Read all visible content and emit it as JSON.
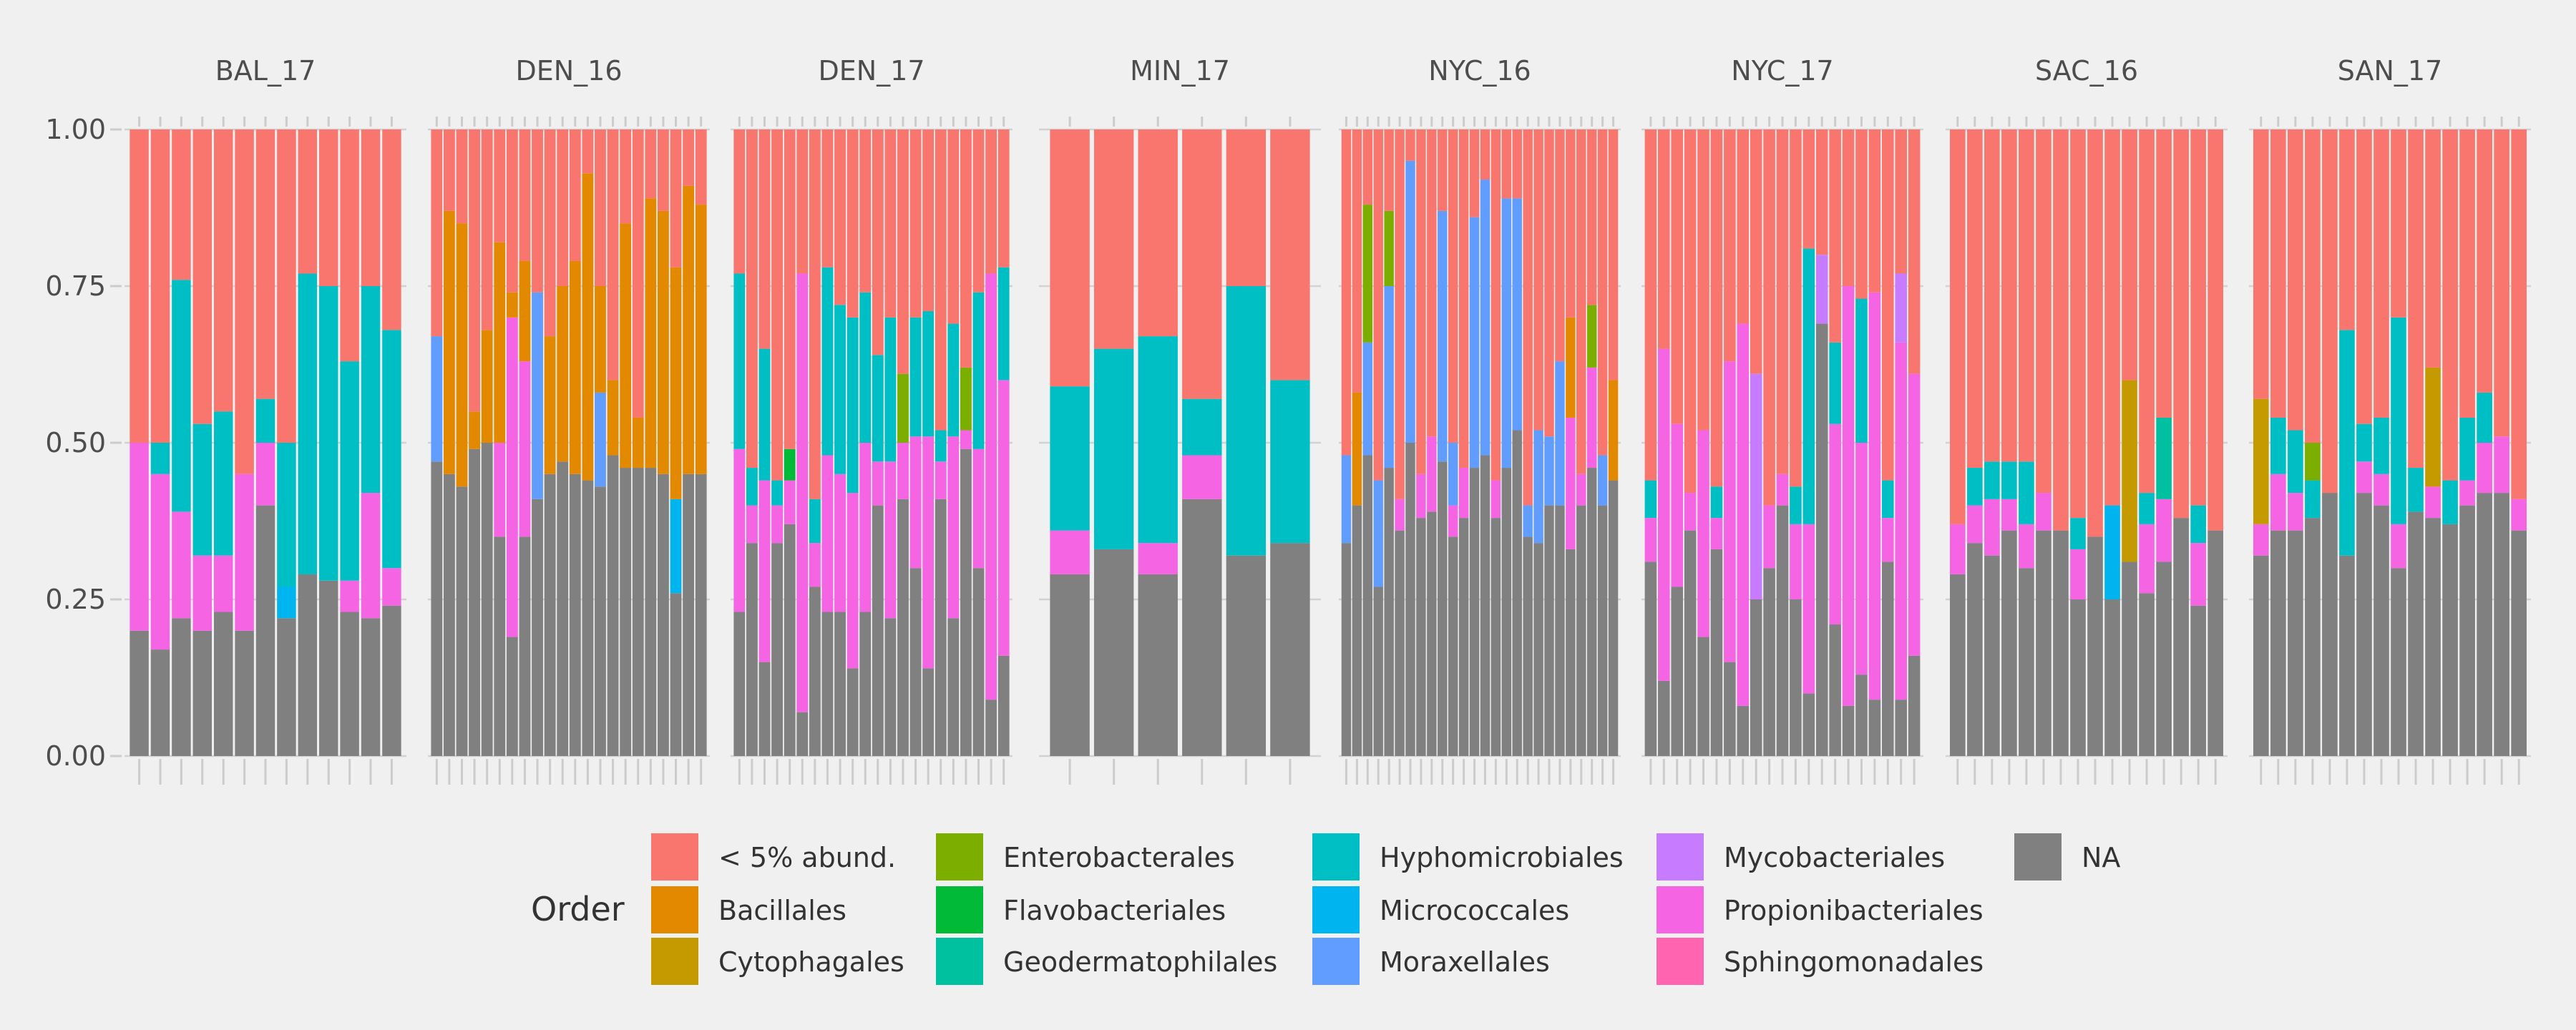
{
  "chart_data": {
    "type": "bar",
    "stacked": true,
    "facet": "panel",
    "ylim": [
      0,
      1
    ],
    "yticks": [
      "0.00",
      "0.25",
      "0.50",
      "0.75",
      "1.00"
    ],
    "grid": true,
    "legend_position": "bottom",
    "legend": {
      "title": "Order",
      "entries": [
        {
          "key": "other",
          "label": "< 5% abund.",
          "color": "#F8766D"
        },
        {
          "key": "bac",
          "label": "Bacillales",
          "color": "#E38900"
        },
        {
          "key": "cyt",
          "label": "Cytophagales",
          "color": "#C49A00"
        },
        {
          "key": "ent",
          "label": "Enterobacterales",
          "color": "#7CAE00"
        },
        {
          "key": "fla",
          "label": "Flavobacteriales",
          "color": "#00BA38"
        },
        {
          "key": "geo",
          "label": "Geodermatophilales",
          "color": "#00C19F"
        },
        {
          "key": "hyp",
          "label": "Hyphomicrobiales",
          "color": "#00BFC4"
        },
        {
          "key": "mic",
          "label": "Micrococcales",
          "color": "#00B4EF"
        },
        {
          "key": "mor",
          "label": "Moraxellales",
          "color": "#619CFF"
        },
        {
          "key": "myc",
          "label": "Mycobacteriales",
          "color": "#C77CFF"
        },
        {
          "key": "pro",
          "label": "Propionibacteriales",
          "color": "#F564E3"
        },
        {
          "key": "sph",
          "label": "Sphingomonadales",
          "color": "#FF64B0"
        },
        {
          "key": "na",
          "label": "NA",
          "color": "#808080"
        }
      ]
    },
    "panels": [
      {
        "name": "BAL_17",
        "samples": [
          {
            "na": 0.2,
            "pro": 0.3
          },
          {
            "na": 0.17,
            "pro": 0.28,
            "hyp": 0.05
          },
          {
            "na": 0.22,
            "pro": 0.17,
            "hyp": 0.37
          },
          {
            "na": 0.2,
            "pro": 0.12,
            "hyp": 0.21
          },
          {
            "na": 0.23,
            "pro": 0.09,
            "hyp": 0.23
          },
          {
            "na": 0.2,
            "pro": 0.25
          },
          {
            "na": 0.4,
            "pro": 0.1,
            "hyp": 0.07
          },
          {
            "na": 0.22,
            "mic": 0.05,
            "hyp": 0.23
          },
          {
            "na": 0.29,
            "hyp": 0.48
          },
          {
            "na": 0.28,
            "hyp": 0.47
          },
          {
            "na": 0.23,
            "pro": 0.05,
            "hyp": 0.35
          },
          {
            "na": 0.22,
            "pro": 0.2,
            "hyp": 0.33
          },
          {
            "na": 0.24,
            "pro": 0.06,
            "hyp": 0.38
          }
        ]
      },
      {
        "name": "DEN_16",
        "samples": [
          {
            "na": 0.47,
            "mor": 0.2
          },
          {
            "na": 0.45,
            "bac": 0.42
          },
          {
            "na": 0.43,
            "bac": 0.42
          },
          {
            "na": 0.49,
            "bac": 0.06
          },
          {
            "na": 0.5,
            "bac": 0.18
          },
          {
            "na": 0.35,
            "pro": 0.15,
            "bac": 0.32
          },
          {
            "na": 0.19,
            "pro": 0.51,
            "bac": 0.04
          },
          {
            "na": 0.35,
            "pro": 0.28,
            "bac": 0.16
          },
          {
            "na": 0.41,
            "mor": 0.33
          },
          {
            "na": 0.45,
            "bac": 0.22
          },
          {
            "na": 0.47,
            "bac": 0.28
          },
          {
            "na": 0.45,
            "bac": 0.34
          },
          {
            "na": 0.44,
            "bac": 0.49
          },
          {
            "na": 0.43,
            "mor": 0.15,
            "bac": 0.17
          },
          {
            "na": 0.48,
            "bac": 0.12
          },
          {
            "na": 0.46,
            "bac": 0.39
          },
          {
            "na": 0.46,
            "bac": 0.08
          },
          {
            "na": 0.46,
            "bac": 0.43
          },
          {
            "na": 0.45,
            "bac": 0.42
          },
          {
            "na": 0.26,
            "mic": 0.15,
            "bac": 0.37
          },
          {
            "na": 0.45,
            "bac": 0.46
          },
          {
            "na": 0.45,
            "bac": 0.43
          }
        ]
      },
      {
        "name": "DEN_17",
        "samples": [
          {
            "na": 0.23,
            "pro": 0.26,
            "hyp": 0.28
          },
          {
            "na": 0.34,
            "pro": 0.06,
            "hyp": 0.06
          },
          {
            "na": 0.15,
            "pro": 0.29,
            "hyp": 0.21
          },
          {
            "na": 0.34,
            "pro": 0.06,
            "hyp": 0.04
          },
          {
            "na": 0.37,
            "pro": 0.07,
            "fla": 0.05
          },
          {
            "na": 0.07,
            "pro": 0.7
          },
          {
            "na": 0.27,
            "pro": 0.07,
            "hyp": 0.07
          },
          {
            "na": 0.23,
            "pro": 0.25,
            "hyp": 0.3
          },
          {
            "na": 0.23,
            "pro": 0.22,
            "hyp": 0.27
          },
          {
            "na": 0.14,
            "pro": 0.28,
            "hyp": 0.28
          },
          {
            "na": 0.23,
            "pro": 0.27,
            "hyp": 0.24
          },
          {
            "na": 0.4,
            "pro": 0.07,
            "hyp": 0.17
          },
          {
            "na": 0.22,
            "pro": 0.25,
            "hyp": 0.23
          },
          {
            "na": 0.41,
            "pro": 0.09,
            "ent": 0.11
          },
          {
            "na": 0.3,
            "pro": 0.21,
            "hyp": 0.19
          },
          {
            "na": 0.14,
            "pro": 0.37,
            "hyp": 0.2
          },
          {
            "na": 0.41,
            "pro": 0.06,
            "hyp": 0.05
          },
          {
            "na": 0.22,
            "pro": 0.29,
            "hyp": 0.18
          },
          {
            "na": 0.49,
            "pro": 0.03,
            "ent": 0.1
          },
          {
            "na": 0.3,
            "pro": 0.19,
            "hyp": 0.25
          },
          {
            "na": 0.09,
            "pro": 0.68
          },
          {
            "na": 0.16,
            "pro": 0.44,
            "hyp": 0.18
          }
        ]
      },
      {
        "name": "MIN_17",
        "samples": [
          {
            "na": 0.29,
            "pro": 0.07,
            "hyp": 0.23
          },
          {
            "na": 0.33,
            "hyp": 0.32
          },
          {
            "na": 0.29,
            "pro": 0.05,
            "hyp": 0.33
          },
          {
            "na": 0.41,
            "pro": 0.07,
            "hyp": 0.09
          },
          {
            "na": 0.32,
            "hyp": 0.43
          },
          {
            "na": 0.34,
            "hyp": 0.26
          }
        ]
      },
      {
        "name": "NYC_16",
        "samples": [
          {
            "na": 0.34,
            "mor": 0.14
          },
          {
            "na": 0.4,
            "bac": 0.18
          },
          {
            "na": 0.48,
            "mor": 0.18,
            "ent": 0.22
          },
          {
            "na": 0.27,
            "mor": 0.17
          },
          {
            "na": 0.46,
            "mor": 0.29,
            "ent": 0.12
          },
          {
            "na": 0.36,
            "pro": 0.05
          },
          {
            "na": 0.5,
            "mor": 0.45
          },
          {
            "na": 0.38,
            "pro": 0.07
          },
          {
            "na": 0.39,
            "pro": 0.12
          },
          {
            "na": 0.47,
            "mor": 0.4
          },
          {
            "na": 0.35,
            "pro": 0.05,
            "mor": 0.1
          },
          {
            "na": 0.38,
            "pro": 0.08
          },
          {
            "na": 0.46,
            "mor": 0.4
          },
          {
            "na": 0.48,
            "mor": 0.44
          },
          {
            "na": 0.38,
            "pro": 0.06
          },
          {
            "na": 0.46,
            "mor": 0.43
          },
          {
            "na": 0.52,
            "mor": 0.37
          },
          {
            "na": 0.35,
            "mor": 0.05
          },
          {
            "na": 0.34,
            "mor": 0.18
          },
          {
            "na": 0.4,
            "mor": 0.11
          },
          {
            "na": 0.4,
            "mor": 0.23
          },
          {
            "na": 0.33,
            "pro": 0.21,
            "bac": 0.16
          },
          {
            "na": 0.4,
            "pro": 0.05
          },
          {
            "na": 0.46,
            "pro": 0.16,
            "ent": 0.1
          },
          {
            "na": 0.4,
            "mor": 0.08
          },
          {
            "na": 0.44,
            "bac": 0.16
          }
        ]
      },
      {
        "name": "NYC_17",
        "samples": [
          {
            "na": 0.31,
            "pro": 0.07,
            "hyp": 0.06
          },
          {
            "na": 0.12,
            "pro": 0.53
          },
          {
            "na": 0.27,
            "pro": 0.26
          },
          {
            "na": 0.36,
            "pro": 0.06
          },
          {
            "na": 0.19,
            "pro": 0.33
          },
          {
            "na": 0.33,
            "pro": 0.05,
            "hyp": 0.05
          },
          {
            "na": 0.15,
            "pro": 0.48
          },
          {
            "na": 0.08,
            "pro": 0.61
          },
          {
            "na": 0.25,
            "myc": 0.36
          },
          {
            "na": 0.3,
            "pro": 0.1
          },
          {
            "na": 0.4,
            "pro": 0.05
          },
          {
            "na": 0.25,
            "pro": 0.12,
            "hyp": 0.06
          },
          {
            "na": 0.1,
            "pro": 0.27,
            "hyp": 0.44
          },
          {
            "na": 0.69,
            "myc": 0.11
          },
          {
            "na": 0.21,
            "pro": 0.32,
            "hyp": 0.13
          },
          {
            "na": 0.08,
            "pro": 0.67
          },
          {
            "na": 0.13,
            "pro": 0.37,
            "hyp": 0.23
          },
          {
            "na": 0.09,
            "pro": 0.65
          },
          {
            "na": 0.31,
            "pro": 0.07,
            "hyp": 0.06
          },
          {
            "na": 0.09,
            "pro": 0.57,
            "myc": 0.11
          },
          {
            "na": 0.16,
            "pro": 0.45
          }
        ]
      },
      {
        "name": "SAC_16",
        "samples": [
          {
            "na": 0.29,
            "pro": 0.08
          },
          {
            "na": 0.34,
            "pro": 0.06,
            "hyp": 0.06
          },
          {
            "na": 0.32,
            "pro": 0.09,
            "hyp": 0.06
          },
          {
            "na": 0.36,
            "pro": 0.05,
            "hyp": 0.06
          },
          {
            "na": 0.3,
            "pro": 0.07,
            "hyp": 0.1
          },
          {
            "na": 0.36,
            "pro": 0.06
          },
          {
            "na": 0.36
          },
          {
            "na": 0.25,
            "pro": 0.08,
            "hyp": 0.05
          },
          {
            "na": 0.35
          },
          {
            "na": 0.25,
            "mic": 0.15
          },
          {
            "na": 0.31,
            "cyt": 0.29
          },
          {
            "na": 0.26,
            "pro": 0.11,
            "hyp": 0.05
          },
          {
            "na": 0.31,
            "pro": 0.1,
            "geo": 0.13
          },
          {
            "na": 0.38
          },
          {
            "na": 0.24,
            "pro": 0.1,
            "hyp": 0.06
          },
          {
            "na": 0.36
          }
        ]
      },
      {
        "name": "SAN_17",
        "samples": [
          {
            "na": 0.32,
            "pro": 0.05,
            "cyt": 0.2
          },
          {
            "na": 0.36,
            "pro": 0.09,
            "hyp": 0.09
          },
          {
            "na": 0.36,
            "pro": 0.06,
            "hyp": 0.1
          },
          {
            "na": 0.38,
            "hyp": 0.06,
            "ent": 0.06
          },
          {
            "na": 0.42
          },
          {
            "na": 0.32,
            "hyp": 0.36
          },
          {
            "na": 0.42,
            "pro": 0.05,
            "hyp": 0.06
          },
          {
            "na": 0.4,
            "pro": 0.05,
            "hyp": 0.09
          },
          {
            "na": 0.3,
            "pro": 0.07,
            "hyp": 0.33
          },
          {
            "na": 0.39,
            "hyp": 0.07
          },
          {
            "na": 0.38,
            "pro": 0.05,
            "cyt": 0.19
          },
          {
            "na": 0.37,
            "hyp": 0.07
          },
          {
            "na": 0.4,
            "pro": 0.04,
            "hyp": 0.1
          },
          {
            "na": 0.42,
            "pro": 0.08,
            "hyp": 0.08
          },
          {
            "na": 0.42,
            "pro": 0.09
          },
          {
            "na": 0.36,
            "pro": 0.05
          }
        ]
      }
    ]
  }
}
